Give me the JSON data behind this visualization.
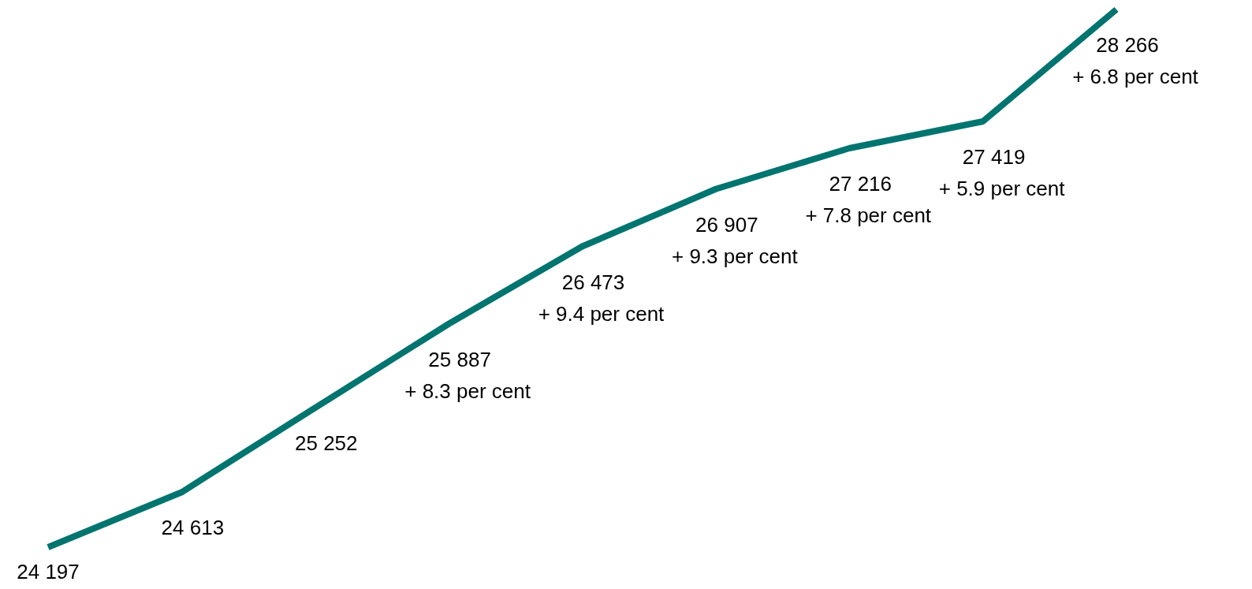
{
  "chart_data": {
    "type": "line",
    "categories": [
      null,
      null,
      null,
      null,
      null,
      null,
      null,
      null,
      null
    ],
    "series": [
      {
        "color": "#00746f",
        "values": [
          24197,
          24613,
          25252,
          25887,
          26473,
          26907,
          27216,
          27419,
          28266
        ]
      }
    ],
    "data_labels": true,
    "annotations": [
      "+ 8.3 per cent",
      "+ 9.4 per cent",
      "+ 9.3 per cent",
      "+ 7.8 per cent",
      "+ 5.9 per cent",
      "+ 6.8 per cent"
    ],
    "marker": "none",
    "line_style": "solid",
    "grid": false
  }
}
